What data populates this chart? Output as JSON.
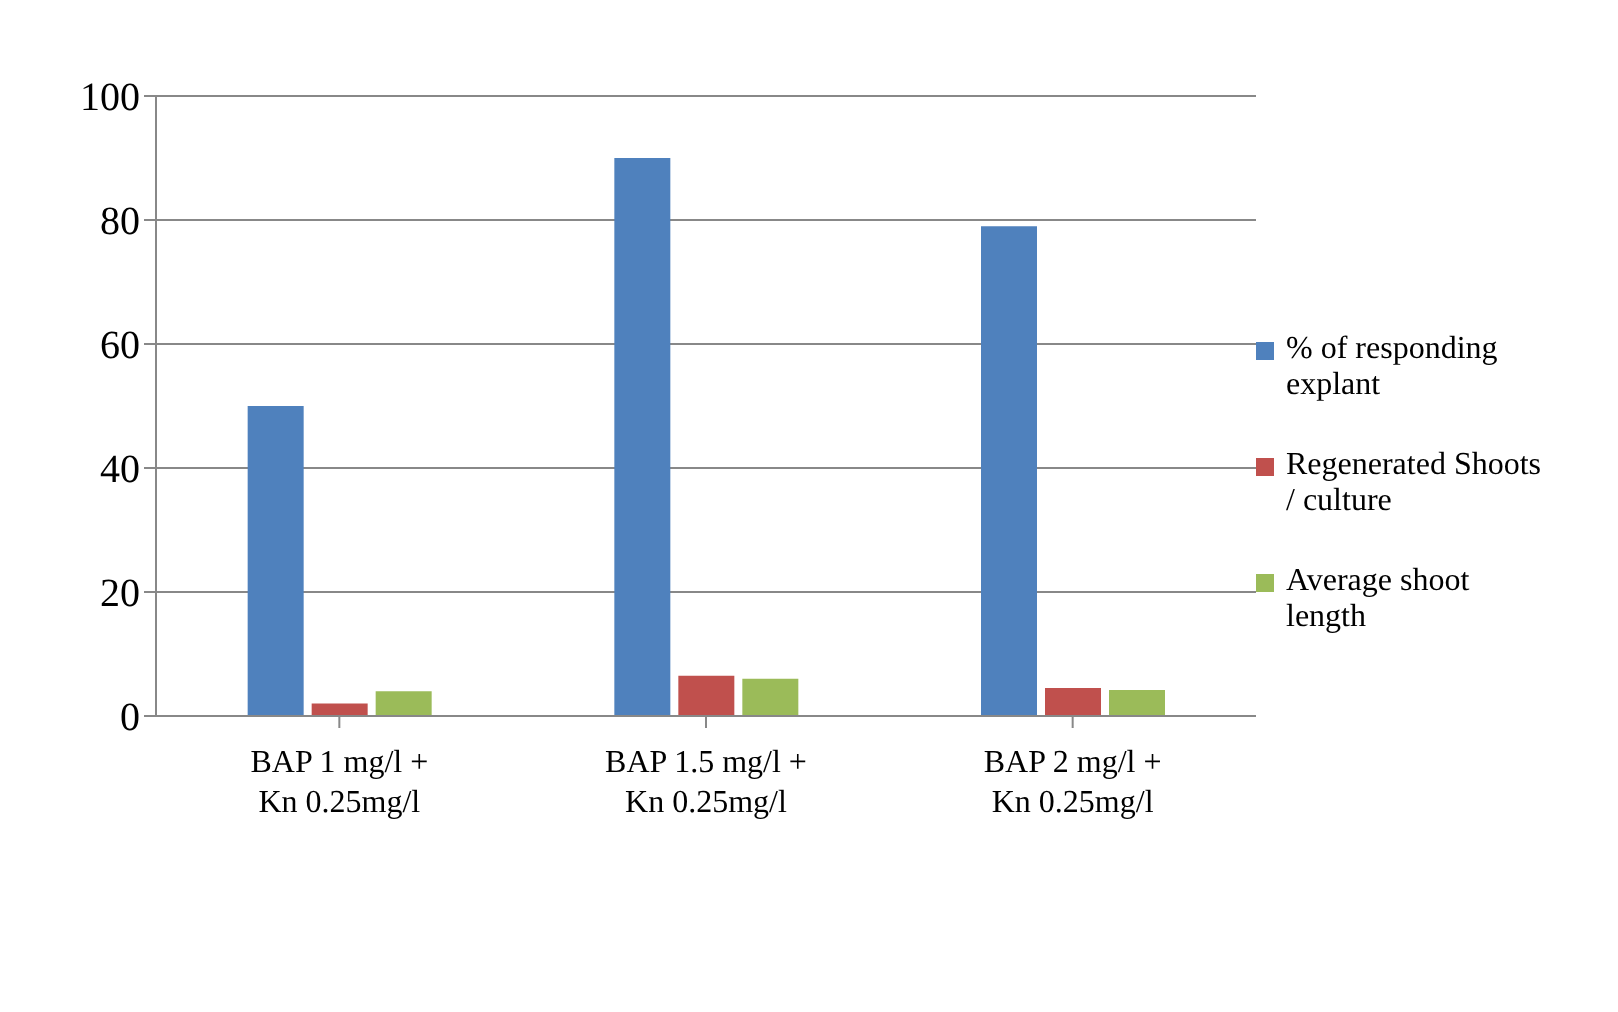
{
  "chart_data": {
    "type": "bar",
    "categories": [
      "BAP 1 mg/l + Kn 0.25mg/l",
      "BAP 1.5 mg/l + Kn 0.25mg/l",
      "BAP 2 mg/l + Kn 0.25mg/l"
    ],
    "series": [
      {
        "name": "% of responding explant",
        "color": "#4f81bd",
        "values": [
          50,
          90,
          79
        ]
      },
      {
        "name": "Regenerated Shoots / culture",
        "color": "#c0504d",
        "values": [
          2,
          6.5,
          4.5
        ]
      },
      {
        "name": "Average shoot length",
        "color": "#9bbb59",
        "values": [
          4,
          6,
          4.2
        ]
      }
    ],
    "ylim": [
      0,
      100
    ],
    "yticks": [
      0,
      20,
      40,
      60,
      80,
      100
    ],
    "grid": "y",
    "legend": "right"
  }
}
